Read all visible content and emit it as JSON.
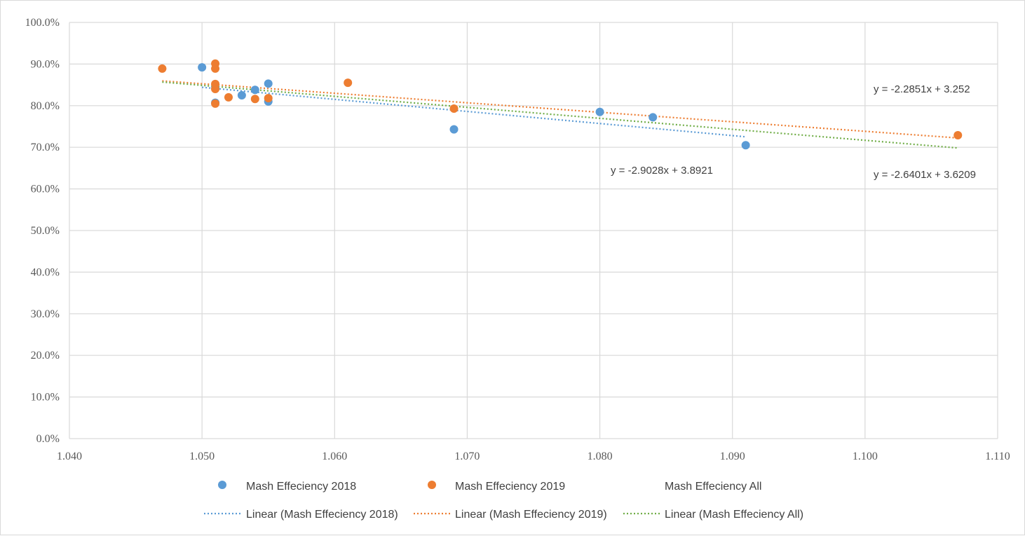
{
  "chart_data": {
    "type": "scatter",
    "xlim": [
      1.04,
      1.11
    ],
    "ylim": [
      0,
      1.0
    ],
    "x_ticks": [
      "1.040",
      "1.050",
      "1.060",
      "1.070",
      "1.080",
      "1.090",
      "1.100",
      "1.110"
    ],
    "y_ticks": [
      "0.0%",
      "10.0%",
      "20.0%",
      "30.0%",
      "40.0%",
      "50.0%",
      "60.0%",
      "70.0%",
      "80.0%",
      "90.0%",
      "100.0%"
    ],
    "grid": true,
    "legend_position": "bottom",
    "series": [
      {
        "name": "Mash Effeciency 2018",
        "color": "#5b9bd5",
        "points": [
          {
            "x": 1.05,
            "y": 0.892
          },
          {
            "x": 1.051,
            "y": 0.842
          },
          {
            "x": 1.051,
            "y": 0.807
          },
          {
            "x": 1.053,
            "y": 0.825
          },
          {
            "x": 1.054,
            "y": 0.838
          },
          {
            "x": 1.055,
            "y": 0.853
          },
          {
            "x": 1.055,
            "y": 0.81
          },
          {
            "x": 1.069,
            "y": 0.743
          },
          {
            "x": 1.08,
            "y": 0.785
          },
          {
            "x": 1.084,
            "y": 0.772
          },
          {
            "x": 1.091,
            "y": 0.705
          }
        ]
      },
      {
        "name": "Mash Effeciency 2019",
        "color": "#ed7d31",
        "points": [
          {
            "x": 1.047,
            "y": 0.889
          },
          {
            "x": 1.051,
            "y": 0.901
          },
          {
            "x": 1.051,
            "y": 0.889
          },
          {
            "x": 1.051,
            "y": 0.852
          },
          {
            "x": 1.051,
            "y": 0.84
          },
          {
            "x": 1.051,
            "y": 0.805
          },
          {
            "x": 1.052,
            "y": 0.82
          },
          {
            "x": 1.054,
            "y": 0.816
          },
          {
            "x": 1.055,
            "y": 0.818
          },
          {
            "x": 1.061,
            "y": 0.855
          },
          {
            "x": 1.069,
            "y": 0.793
          },
          {
            "x": 1.107,
            "y": 0.729
          }
        ]
      },
      {
        "name": "Mash Effeciency All",
        "color": "#a5a5a5",
        "points": []
      }
    ],
    "trendlines": [
      {
        "name": "Linear  (Mash Effeciency 2018)",
        "color": "#5b9bd5",
        "slope": -2.9028,
        "intercept": 3.8921,
        "x_range": [
          1.05,
          1.091
        ],
        "equation": "y = -2.9028x + 3.8921"
      },
      {
        "name": "Linear  (Mash Effeciency 2019)",
        "color": "#ed7d31",
        "slope": -2.2851,
        "intercept": 3.252,
        "x_range": [
          1.047,
          1.107
        ],
        "equation": "y = -2.2851x + 3.252"
      },
      {
        "name": "Linear  (Mash Effeciency All)",
        "color": "#70ad47",
        "slope": -2.6401,
        "intercept": 3.6209,
        "x_range": [
          1.047,
          1.107
        ],
        "equation": "y = -2.6401x + 3.6209"
      }
    ]
  }
}
